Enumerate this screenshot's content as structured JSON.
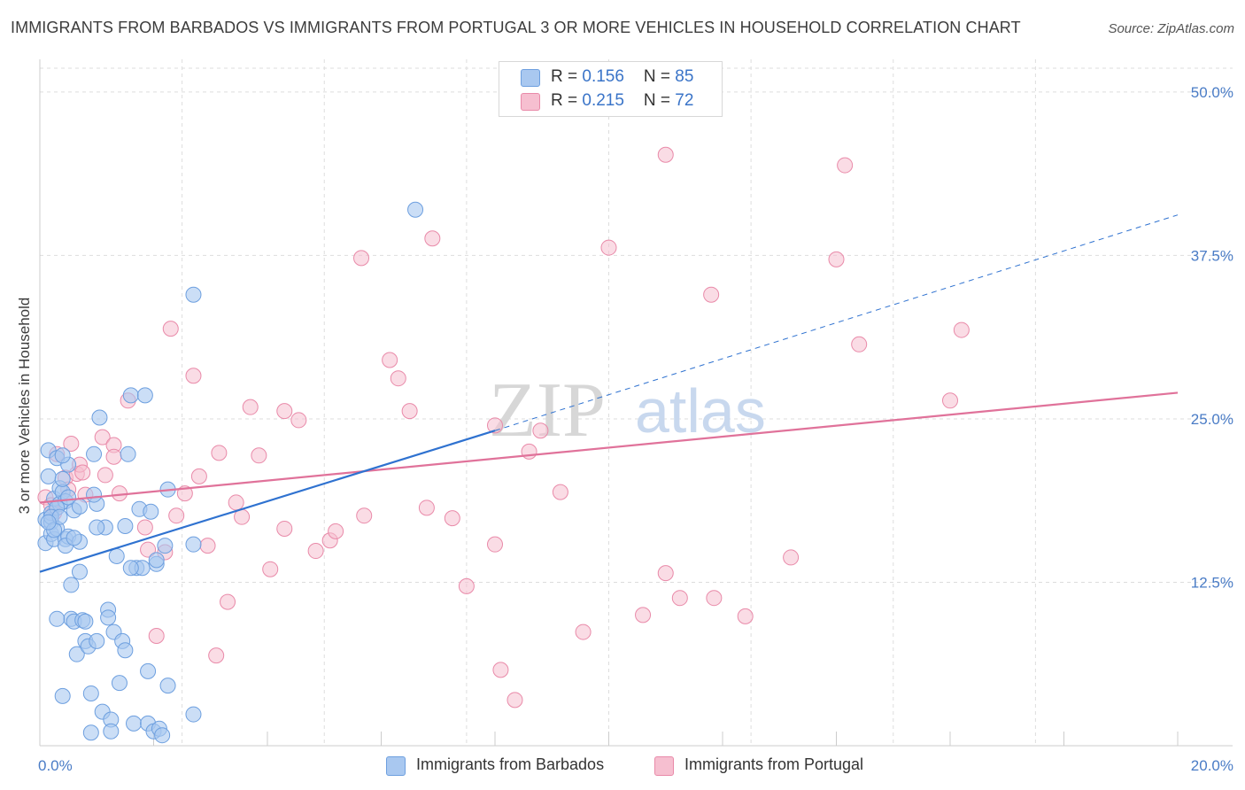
{
  "title": "IMMIGRANTS FROM BARBADOS VS IMMIGRANTS FROM PORTUGAL 3 OR MORE VEHICLES IN HOUSEHOLD CORRELATION CHART",
  "source": "Source: ZipAtlas.com",
  "watermark": {
    "zip": "ZIP",
    "atlas": "atlas"
  },
  "legend": {
    "barbados": {
      "r_label": "R = ",
      "r_value": "0.156",
      "n_label": "N = ",
      "n_value": "85"
    },
    "portugal": {
      "r_label": "R = ",
      "r_value": "0.215",
      "n_label": "N = ",
      "n_value": "72"
    }
  },
  "colors": {
    "barbados_fill": "#a9c8f0",
    "barbados_stroke": "#6d9fdf",
    "barbados_line": "#2f72d0",
    "portugal_fill": "#f6bfd0",
    "portugal_stroke": "#e98aa9",
    "portugal_line": "#e0729a",
    "tick": "#4a7cc6",
    "grid": "#dddddd"
  },
  "chart_data": {
    "type": "scatter",
    "title": "IMMIGRANTS FROM BARBADOS VS IMMIGRANTS FROM PORTUGAL 3 OR MORE VEHICLES IN HOUSEHOLD CORRELATION CHART",
    "xlabel": "",
    "ylabel": "3 or more Vehicles in Household",
    "xlim": [
      0,
      20
    ],
    "ylim": [
      0,
      52.5
    ],
    "x_tick_labels": [
      "0.0%",
      "20.0%"
    ],
    "y_ticks": [
      12.5,
      25.0,
      37.5,
      50.0
    ],
    "y_tick_labels": [
      "12.5%",
      "25.0%",
      "37.5%",
      "50.0%"
    ],
    "grid": true,
    "legend_position": "top-center",
    "series": [
      {
        "name": "Immigrants from Barbados",
        "r": 0.156,
        "n": 85,
        "trend": {
          "x0": 0,
          "y0": 13.3,
          "x1": 8,
          "y1": 24.1,
          "dashed_to_x": 20,
          "dashed_to_y": 40.6
        },
        "points": [
          [
            0.1,
            15.5
          ],
          [
            0.1,
            17.3
          ],
          [
            0.15,
            20.6
          ],
          [
            0.15,
            22.6
          ],
          [
            0.2,
            16.2
          ],
          [
            0.2,
            17.1
          ],
          [
            0.2,
            17.8
          ],
          [
            0.25,
            15.8
          ],
          [
            0.25,
            18.9
          ],
          [
            0.3,
            16.6
          ],
          [
            0.3,
            22.0
          ],
          [
            0.35,
            19.7
          ],
          [
            0.35,
            18.5
          ],
          [
            0.4,
            19.4
          ],
          [
            0.4,
            20.4
          ],
          [
            0.45,
            18.7
          ],
          [
            0.45,
            15.8
          ],
          [
            0.5,
            16.0
          ],
          [
            0.5,
            21.5
          ],
          [
            0.55,
            12.3
          ],
          [
            0.55,
            9.7
          ],
          [
            0.6,
            18.0
          ],
          [
            0.6,
            9.5
          ],
          [
            0.65,
            7.0
          ],
          [
            0.7,
            15.6
          ],
          [
            0.7,
            13.3
          ],
          [
            0.75,
            9.6
          ],
          [
            0.8,
            9.5
          ],
          [
            0.8,
            8.0
          ],
          [
            0.85,
            7.6
          ],
          [
            0.9,
            4.0
          ],
          [
            0.9,
            1.0
          ],
          [
            0.95,
            22.3
          ],
          [
            1.0,
            18.5
          ],
          [
            1.0,
            8.0
          ],
          [
            1.05,
            25.1
          ],
          [
            1.1,
            2.6
          ],
          [
            1.15,
            16.7
          ],
          [
            1.2,
            10.4
          ],
          [
            1.2,
            9.8
          ],
          [
            1.25,
            2.0
          ],
          [
            1.25,
            1.1
          ],
          [
            1.3,
            8.7
          ],
          [
            1.35,
            14.5
          ],
          [
            1.4,
            4.8
          ],
          [
            1.45,
            8.0
          ],
          [
            1.5,
            7.3
          ],
          [
            1.5,
            16.8
          ],
          [
            1.55,
            22.3
          ],
          [
            1.6,
            26.8
          ],
          [
            1.65,
            1.7
          ],
          [
            1.7,
            13.6
          ],
          [
            1.75,
            18.1
          ],
          [
            1.8,
            13.6
          ],
          [
            1.85,
            26.8
          ],
          [
            1.9,
            1.7
          ],
          [
            1.9,
            5.7
          ],
          [
            1.95,
            17.9
          ],
          [
            2.0,
            1.1
          ],
          [
            2.05,
            13.9
          ],
          [
            2.05,
            14.2
          ],
          [
            2.1,
            1.3
          ],
          [
            2.15,
            0.8
          ],
          [
            2.25,
            4.6
          ],
          [
            2.2,
            15.3
          ],
          [
            2.25,
            19.6
          ],
          [
            2.7,
            34.5
          ],
          [
            2.7,
            2.4
          ],
          [
            2.7,
            15.4
          ],
          [
            6.6,
            41.0
          ],
          [
            0.4,
            3.8
          ],
          [
            0.3,
            9.7
          ],
          [
            0.45,
            15.3
          ],
          [
            0.95,
            19.2
          ],
          [
            0.3,
            18.2
          ],
          [
            0.2,
            17.5
          ],
          [
            0.25,
            16.5
          ],
          [
            0.35,
            17.5
          ],
          [
            0.6,
            15.9
          ],
          [
            0.5,
            19.0
          ],
          [
            1.6,
            13.6
          ],
          [
            1.0,
            16.7
          ],
          [
            0.7,
            18.3
          ],
          [
            0.4,
            22.2
          ],
          [
            0.15,
            17.1
          ]
        ]
      },
      {
        "name": "Immigrants from Portugal",
        "r": 0.215,
        "n": 72,
        "trend": {
          "x0": 0,
          "y0": 18.6,
          "x1": 20,
          "y1": 27.0
        },
        "points": [
          [
            0.1,
            19.0
          ],
          [
            0.2,
            18.4
          ],
          [
            0.25,
            17.8
          ],
          [
            0.3,
            22.3
          ],
          [
            0.45,
            20.5
          ],
          [
            0.5,
            19.6
          ],
          [
            0.55,
            23.1
          ],
          [
            0.65,
            20.8
          ],
          [
            0.7,
            21.5
          ],
          [
            0.75,
            20.9
          ],
          [
            1.1,
            23.6
          ],
          [
            1.15,
            20.7
          ],
          [
            1.3,
            23.0
          ],
          [
            1.3,
            22.1
          ],
          [
            1.4,
            19.3
          ],
          [
            1.55,
            26.4
          ],
          [
            1.85,
            16.7
          ],
          [
            1.9,
            15.0
          ],
          [
            2.05,
            8.4
          ],
          [
            2.2,
            14.8
          ],
          [
            2.3,
            31.9
          ],
          [
            2.4,
            17.6
          ],
          [
            2.55,
            19.3
          ],
          [
            2.7,
            28.3
          ],
          [
            2.8,
            20.6
          ],
          [
            2.95,
            15.3
          ],
          [
            3.1,
            6.9
          ],
          [
            3.15,
            22.4
          ],
          [
            3.3,
            11.0
          ],
          [
            3.45,
            18.6
          ],
          [
            3.55,
            17.5
          ],
          [
            3.7,
            25.9
          ],
          [
            3.85,
            22.2
          ],
          [
            4.05,
            13.5
          ],
          [
            4.3,
            16.6
          ],
          [
            4.3,
            25.6
          ],
          [
            4.55,
            24.9
          ],
          [
            4.85,
            14.9
          ],
          [
            5.1,
            15.7
          ],
          [
            5.2,
            16.4
          ],
          [
            5.65,
            37.3
          ],
          [
            5.7,
            17.6
          ],
          [
            6.15,
            29.5
          ],
          [
            6.3,
            28.1
          ],
          [
            6.5,
            25.6
          ],
          [
            6.8,
            18.2
          ],
          [
            6.9,
            38.8
          ],
          [
            7.25,
            17.4
          ],
          [
            7.5,
            12.2
          ],
          [
            8.0,
            24.5
          ],
          [
            8.0,
            15.4
          ],
          [
            8.1,
            5.8
          ],
          [
            8.35,
            3.5
          ],
          [
            8.6,
            22.5
          ],
          [
            8.8,
            24.1
          ],
          [
            9.15,
            19.4
          ],
          [
            9.55,
            8.7
          ],
          [
            10.0,
            38.1
          ],
          [
            10.6,
            10.0
          ],
          [
            11.0,
            45.2
          ],
          [
            11.0,
            13.2
          ],
          [
            11.25,
            11.3
          ],
          [
            11.8,
            34.5
          ],
          [
            11.85,
            11.3
          ],
          [
            12.4,
            9.9
          ],
          [
            13.2,
            14.4
          ],
          [
            14.0,
            37.2
          ],
          [
            14.15,
            44.4
          ],
          [
            14.4,
            30.7
          ],
          [
            16.2,
            31.8
          ],
          [
            16.0,
            26.4
          ],
          [
            0.8,
            19.2
          ]
        ]
      }
    ]
  },
  "bottom_legend": {
    "barbados_label": "Immigrants from Barbados",
    "portugal_label": "Immigrants from Portugal"
  }
}
